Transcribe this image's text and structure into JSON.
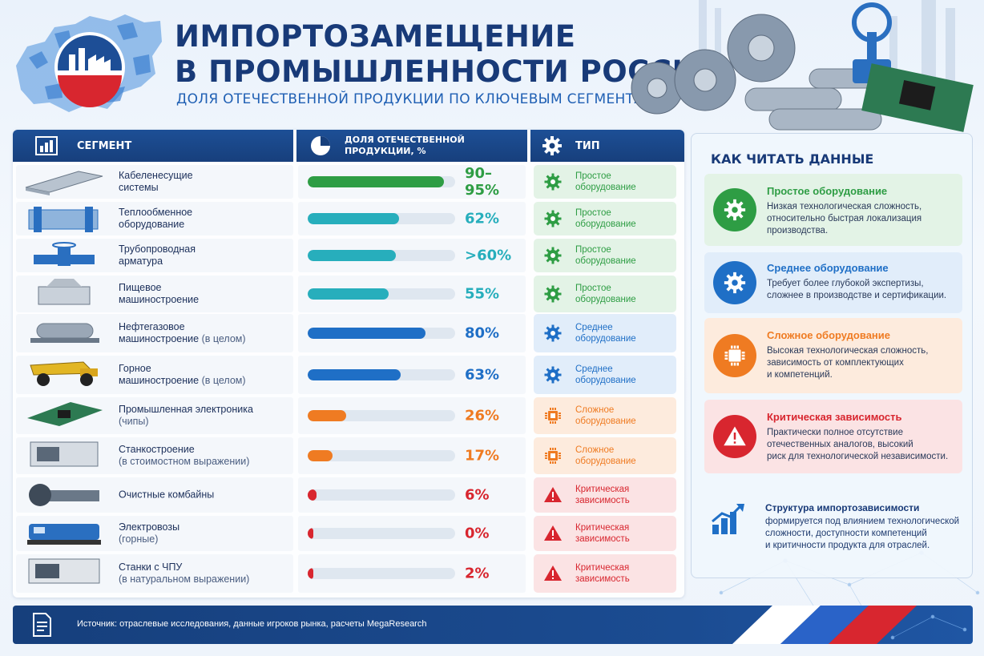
{
  "header": {
    "title_line1": "ИМПОРТОЗАМЕЩЕНИЕ",
    "title_line2": "В ПРОМЫШЛЕННОСТИ РОССИИ",
    "subtitle": "ДОЛЯ ОТЕЧЕСТВЕННОЙ ПРОДУКЦИИ ПО КЛЮЧЕВЫМ СЕГМЕНТАМ"
  },
  "table": {
    "col_segment": "СЕГМЕНТ",
    "col_share_line1": "ДОЛЯ ОТЕЧЕСТВЕННОЙ",
    "col_share_line2": "ПРОДУКЦИИ, %",
    "col_type": "ТИП"
  },
  "chart_data": {
    "type": "bar",
    "orientation": "horizontal",
    "rows": [
      {
        "line1": "Кабеленесущие",
        "line2": "системы",
        "note": "",
        "value": 92.5,
        "label": "90–95%",
        "type": "simple",
        "type_line1": "Простое",
        "type_line2": "оборудование",
        "image": "cable-tray"
      },
      {
        "line1": "Теплообменное",
        "line2": "оборудование",
        "note": "",
        "value": 62,
        "label": "62%",
        "type": "simple",
        "type_line1": "Простое",
        "type_line2": "оборудование",
        "image": "heat-exchanger"
      },
      {
        "line1": "Трубопроводная",
        "line2": "арматура",
        "note": "",
        "value": 60,
        "label": ">60%",
        "type": "simple",
        "type_line1": "Простое",
        "type_line2": "оборудование",
        "image": "pipeline-valve"
      },
      {
        "line1": "Пищевое",
        "line2": "машиностроение",
        "note": "",
        "value": 55,
        "label": "55%",
        "type": "simple",
        "type_line1": "Простое",
        "type_line2": "оборудование",
        "image": "food-machine"
      },
      {
        "line1": "Нефтегазовое",
        "line2": "машиностроение",
        "note": "(в целом)",
        "value": 80,
        "label": "80%",
        "type": "medium",
        "type_line1": "Среднее",
        "type_line2": "оборудование",
        "image": "oil-gas-equipment"
      },
      {
        "line1": "Горное",
        "line2": "машиностроение",
        "note": "(в целом)",
        "value": 63,
        "label": "63%",
        "type": "medium",
        "type_line1": "Среднее",
        "type_line2": "оборудование",
        "image": "mining-truck"
      },
      {
        "line1": "Промышленная электроника",
        "line2": "",
        "note": "(чипы)",
        "value": 26,
        "label": "26%",
        "type": "complex",
        "type_line1": "Сложное",
        "type_line2": "оборудование",
        "image": "circuit-board"
      },
      {
        "line1": "Станкостроение",
        "line2": "",
        "note": "(в стоимостном выражении)",
        "value": 17,
        "label": "17%",
        "type": "complex",
        "type_line1": "Сложное",
        "type_line2": "оборудование",
        "image": "machine-tool"
      },
      {
        "line1": "Очистные комбайны",
        "line2": "",
        "note": "",
        "value": 6,
        "label": "6%",
        "type": "critical",
        "type_line1": "Критическая",
        "type_line2": "зависимость",
        "image": "shearer"
      },
      {
        "line1": "Электровозы",
        "line2": "",
        "note": "(горные)",
        "value": 0,
        "label": "0%",
        "type": "critical",
        "type_line1": "Критическая",
        "type_line2": "зависимость",
        "image": "locomotive"
      },
      {
        "line1": "Станки с ЧПУ",
        "line2": "",
        "note": "(в натуральном выражении)",
        "value": 2,
        "label": "2%",
        "type": "critical",
        "type_line1": "Критическая",
        "type_line2": "зависимость",
        "image": "cnc-machine"
      }
    ],
    "xlim": [
      0,
      100
    ]
  },
  "colors": {
    "simple": "#2e9d44",
    "medium": "#1f6fc6",
    "complex": "#ef7b22",
    "critical": "#d8262f",
    "teal": "#27aebc",
    "navy": "#183a78"
  },
  "legend": {
    "title": "КАК ЧИТАТЬ ДАННЫЕ",
    "items": [
      {
        "key": "simple",
        "title": "Простое оборудование",
        "desc1": "Низкая технологическая сложность,",
        "desc2": "относительно быстрая локализация",
        "desc3": "производства."
      },
      {
        "key": "medium",
        "title": "Среднее оборудование",
        "desc1": "Требует более глубокой экспертизы,",
        "desc2": "сложнее в производстве и сертификации.",
        "desc3": ""
      },
      {
        "key": "complex",
        "title": "Сложное оборудование",
        "desc1": "Высокая технологическая сложность,",
        "desc2": "зависимость от комплектующих",
        "desc3": "и компетенций."
      },
      {
        "key": "critical",
        "title": "Критическая зависимость",
        "desc1": "Практически полное отсутствие",
        "desc2": "отечественных аналогов, высокий",
        "desc3": "риск для технологической независимости."
      }
    ],
    "structure_title": "Структура импортозависимости",
    "structure_desc1": "формируется под влиянием технологической",
    "structure_desc2": "сложности, доступности компетенций",
    "structure_desc3": "и критичности продукта для отраслей."
  },
  "footer": {
    "source": "Источник: отраслевые исследования, данные игроков рынка, расчеты MegaResearch"
  }
}
